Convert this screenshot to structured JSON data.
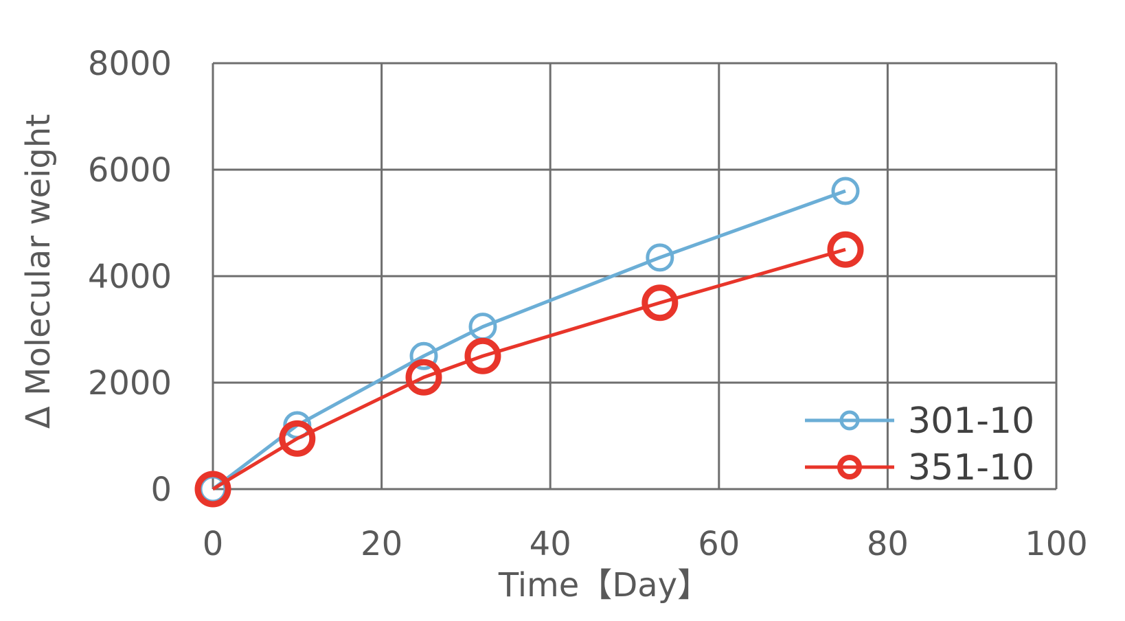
{
  "chart_data": {
    "type": "line",
    "title": "",
    "xlabel": "Time【Day】",
    "ylabel": "Δ Molecular weight",
    "xlim": [
      0,
      100
    ],
    "ylim": [
      0,
      8000
    ],
    "xticks": [
      0,
      20,
      40,
      60,
      80,
      100
    ],
    "yticks": [
      0,
      2000,
      4000,
      6000,
      8000
    ],
    "xtick_labels": [
      "0",
      "20",
      "40",
      "60",
      "80",
      "100"
    ],
    "ytick_labels": [
      "0",
      "2000",
      "4000",
      "6000",
      "8000"
    ],
    "grid": true,
    "legend_position": "bottom-right inside",
    "series": [
      {
        "name": "301-10",
        "color": "#6baed6",
        "marker": "circle-open",
        "x": [
          0,
          10,
          25,
          32,
          53,
          75
        ],
        "y": [
          0,
          1200,
          2500,
          3050,
          4350,
          5600
        ]
      },
      {
        "name": "351-10",
        "color": "#e8352a",
        "marker": "circle-open",
        "x": [
          0,
          10,
          25,
          32,
          53,
          75
        ],
        "y": [
          0,
          950,
          2100,
          2500,
          3500,
          4500
        ]
      }
    ]
  }
}
